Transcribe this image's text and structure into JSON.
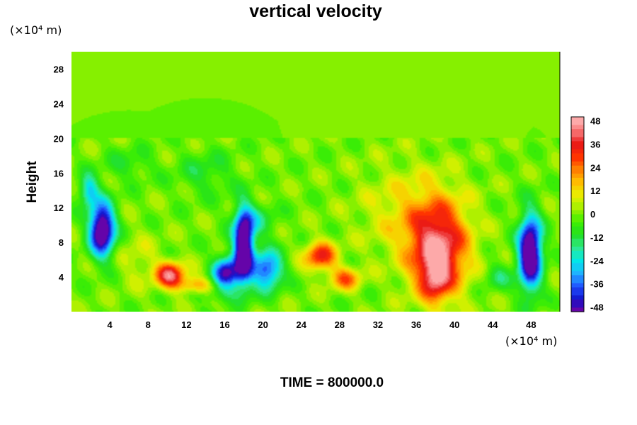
{
  "chart_data": {
    "type": "heatmap",
    "title": "vertical velocity",
    "ylabel": "Height",
    "x_unit": "(×10⁴ m)",
    "y_unit": "(×10⁴ m)",
    "footer": "TIME = 800000.0",
    "xlim": [
      0,
      51
    ],
    "ylim": [
      0,
      30
    ],
    "x_ticks": [
      4,
      8,
      12,
      16,
      20,
      24,
      28,
      32,
      36,
      40,
      44,
      48
    ],
    "y_ticks": [
      4,
      8,
      12,
      16,
      20,
      24,
      28
    ],
    "colorbar": {
      "range": [
        -48,
        48
      ],
      "ticks": [
        48,
        36,
        24,
        12,
        0,
        -12,
        -24,
        -36,
        -48
      ],
      "stops": [
        "#7f00a0",
        "#1010c8",
        "#2050ff",
        "#20b0ff",
        "#00e8e8",
        "#30e890",
        "#20e020",
        "#40f000",
        "#a0f000",
        "#e8f000",
        "#ffc000",
        "#ff8000",
        "#ff3000",
        "#e81818",
        "#f87878",
        "#ffb8b8"
      ]
    },
    "features": [
      {
        "x": 3.2,
        "y": 9.5,
        "sx": 1.3,
        "sy": 3.0,
        "amp": -60
      },
      {
        "x": 1.8,
        "y": 14.0,
        "sx": 1.0,
        "sy": 1.8,
        "amp": -25
      },
      {
        "x": 10.3,
        "y": 4.2,
        "sx": 1.5,
        "sy": 1.5,
        "amp": 40
      },
      {
        "x": 13.0,
        "y": 3.0,
        "sx": 1.8,
        "sy": 1.0,
        "amp": 20
      },
      {
        "x": 16.2,
        "y": 4.5,
        "sx": 1.4,
        "sy": 1.8,
        "amp": -45
      },
      {
        "x": 18.0,
        "y": 7.5,
        "sx": 1.0,
        "sy": 4.0,
        "amp": -60
      },
      {
        "x": 20.4,
        "y": 4.8,
        "sx": 1.6,
        "sy": 2.2,
        "amp": -38
      },
      {
        "x": 19.0,
        "y": 10.5,
        "sx": 2.2,
        "sy": 2.0,
        "amp": -14
      },
      {
        "x": 26.0,
        "y": 6.4,
        "sx": 1.6,
        "sy": 1.6,
        "amp": 33
      },
      {
        "x": 28.6,
        "y": 3.8,
        "sx": 1.6,
        "sy": 1.3,
        "amp": 24
      },
      {
        "x": 38.3,
        "y": 7.0,
        "sx": 3.0,
        "sy": 5.2,
        "amp": 42
      },
      {
        "x": 38.0,
        "y": 4.0,
        "sx": 1.4,
        "sy": 2.6,
        "amp": 22
      },
      {
        "x": 35.5,
        "y": 11.5,
        "sx": 5.0,
        "sy": 5.0,
        "amp": 12
      },
      {
        "x": 47.9,
        "y": 6.8,
        "sx": 1.2,
        "sy": 4.2,
        "amp": -62
      },
      {
        "x": 14.0,
        "y": 16.0,
        "sx": 3.0,
        "sy": 2.5,
        "amp": -9
      },
      {
        "x": 6.0,
        "y": 17.0,
        "sx": 2.5,
        "sy": 1.8,
        "amp": -8
      },
      {
        "x": 15.0,
        "y": 2.0,
        "sx": 3.0,
        "sy": 1.0,
        "amp": -8
      },
      {
        "x": 44.5,
        "y": 4.0,
        "sx": 1.5,
        "sy": 1.5,
        "amp": -12
      },
      {
        "x": 7.0,
        "y": 6.0,
        "sx": 2.0,
        "sy": 3.0,
        "amp": 7
      }
    ],
    "grid": false
  }
}
